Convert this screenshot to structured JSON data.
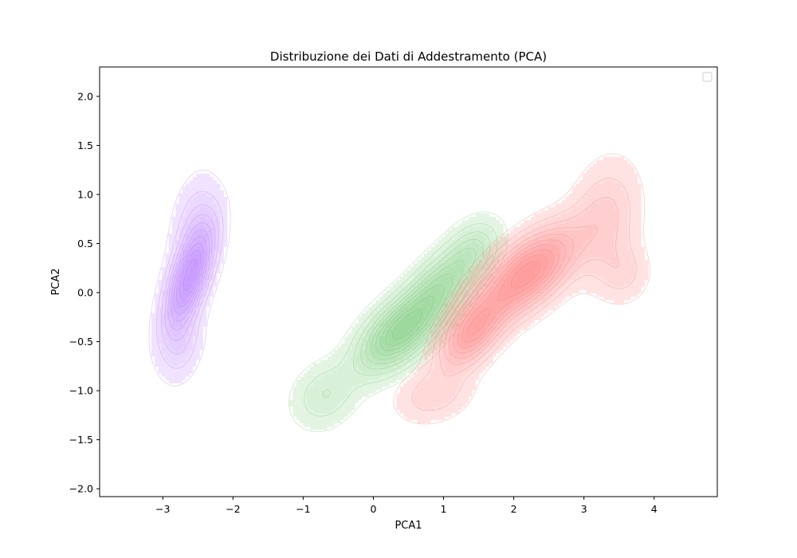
{
  "chart_data": {
    "type": "kde-contour",
    "title": "Distribuzione dei Dati di Addestramento (PCA)",
    "xlabel": "PCA1",
    "ylabel": "PCA2",
    "xlim": [
      -3.9,
      4.9
    ],
    "ylim": [
      -2.08,
      2.3
    ],
    "xticks": [
      -3,
      -2,
      -1,
      0,
      1,
      2,
      3,
      4
    ],
    "yticks": [
      -2.0,
      -1.5,
      -1.0,
      -0.5,
      0.0,
      0.5,
      1.0,
      1.5,
      2.0
    ],
    "xtick_labels": [
      "−3",
      "−2",
      "−1",
      "0",
      "1",
      "2",
      "3",
      "4"
    ],
    "ytick_labels": [
      "−2.0",
      "−1.5",
      "−1.0",
      "−0.5",
      "0.0",
      "0.5",
      "1.0",
      "1.5",
      "2.0"
    ],
    "grid": false,
    "legend": {
      "placement": "top-right",
      "entries": []
    },
    "levels": 10,
    "series": [
      {
        "color": "#b366ff",
        "modes": [
          {
            "cx": -2.62,
            "cy": 0.15,
            "sx": 0.24,
            "sy": 0.36,
            "r": 0.65,
            "w": 1.0
          },
          {
            "cx": -2.55,
            "cy": 0.72,
            "sx": 0.22,
            "sy": 0.33,
            "r": 0.3,
            "w": 0.22
          },
          {
            "cx": -2.72,
            "cy": -0.55,
            "sx": 0.2,
            "sy": 0.25,
            "r": 0.3,
            "w": 0.22
          }
        ]
      },
      {
        "color": "#66c266",
        "modes": [
          {
            "cx": 0.35,
            "cy": -0.42,
            "sx": 0.38,
            "sy": 0.26,
            "r": 0.55,
            "w": 1.0
          },
          {
            "cx": 0.95,
            "cy": 0.05,
            "sx": 0.35,
            "sy": 0.28,
            "r": 0.6,
            "w": 0.7
          },
          {
            "cx": -0.7,
            "cy": -1.05,
            "sx": 0.3,
            "sy": 0.22,
            "r": 0.2,
            "w": 0.28
          },
          {
            "cx": 1.45,
            "cy": 0.45,
            "sx": 0.25,
            "sy": 0.2,
            "r": 0.3,
            "w": 0.3
          }
        ]
      },
      {
        "color": "#ff6666",
        "modes": [
          {
            "cx": 2.2,
            "cy": 0.2,
            "sx": 0.45,
            "sy": 0.3,
            "r": 0.6,
            "w": 1.0
          },
          {
            "cx": 1.4,
            "cy": -0.4,
            "sx": 0.3,
            "sy": 0.25,
            "r": 0.5,
            "w": 0.75
          },
          {
            "cx": 3.3,
            "cy": 0.75,
            "sx": 0.32,
            "sy": 0.38,
            "r": 0.2,
            "w": 0.28
          },
          {
            "cx": 0.85,
            "cy": -1.05,
            "sx": 0.35,
            "sy": 0.18,
            "r": 0.2,
            "w": 0.22
          },
          {
            "cx": 3.55,
            "cy": 0.2,
            "sx": 0.25,
            "sy": 0.2,
            "r": 0.0,
            "w": 0.18
          }
        ]
      }
    ]
  }
}
